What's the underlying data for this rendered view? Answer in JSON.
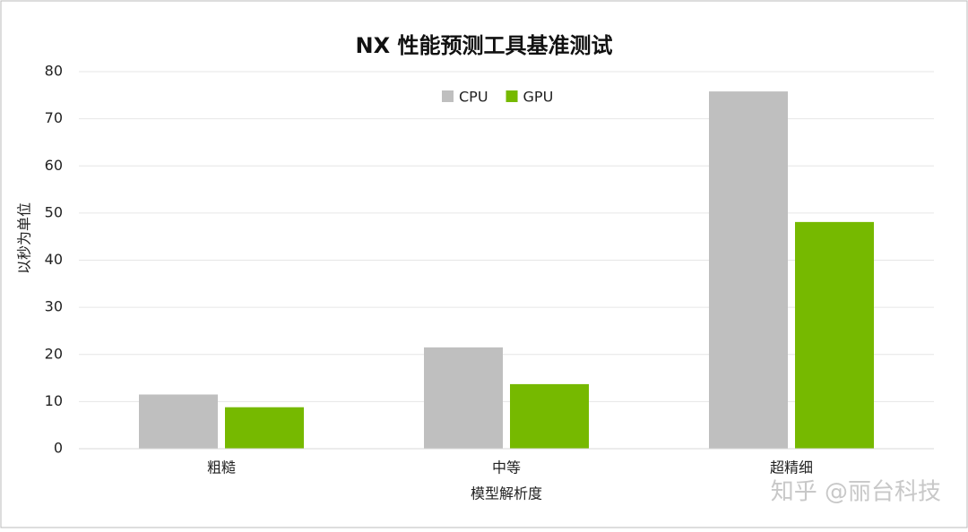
{
  "chart_data": {
    "type": "bar",
    "title": "NX 性能预测工具基准测试",
    "y_label": "以秒为单位",
    "x_label": "模型解析度",
    "categories": [
      "粗糙",
      "中等",
      "超精细"
    ],
    "series": [
      {
        "name": "CPU",
        "color": "#bfbfbf",
        "values": [
          11.5,
          21.5,
          75.8
        ]
      },
      {
        "name": "GPU",
        "color": "#76b900",
        "values": [
          8.8,
          13.7,
          48.1
        ]
      }
    ],
    "ylim": [
      0,
      80
    ],
    "yticks": [
      0,
      10,
      20,
      30,
      40,
      50,
      60,
      70,
      80
    ],
    "grid": true,
    "legend": "top",
    "watermark": "知乎 @丽台科技"
  }
}
